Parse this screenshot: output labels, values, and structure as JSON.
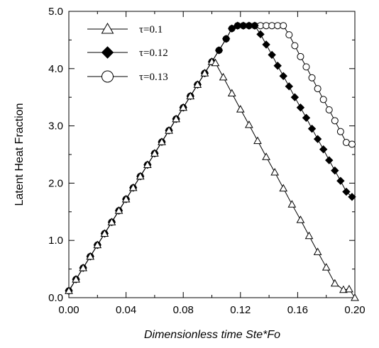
{
  "chart_data": {
    "type": "line",
    "xlabel": "Dimensionless time Ste*Fo",
    "ylabel": "Latent Heat Fraction",
    "xlim": [
      0.0,
      0.2
    ],
    "ylim": [
      0.0,
      5.0
    ],
    "x_ticks": [
      "0.00",
      "0.04",
      "0.08",
      "0.12",
      "0.16",
      "0.20"
    ],
    "x_tick_values": [
      0.0,
      0.04,
      0.08,
      0.12,
      0.16,
      0.2
    ],
    "y_ticks": [
      "0.0",
      "1.0",
      "2.0",
      "3.0",
      "4.0",
      "5.0"
    ],
    "y_tick_values": [
      0.0,
      1.0,
      2.0,
      3.0,
      4.0,
      5.0
    ],
    "grid": false,
    "legend_position": "top-left",
    "series": [
      {
        "name": "τ=0.1",
        "marker": "open-triangle",
        "peak": {
          "x": 0.1025,
          "y": 4.1
        },
        "x": [
          0.0,
          0.005,
          0.01,
          0.015,
          0.02,
          0.025,
          0.03,
          0.035,
          0.04,
          0.045,
          0.05,
          0.055,
          0.06,
          0.065,
          0.07,
          0.075,
          0.08,
          0.085,
          0.09,
          0.095,
          0.1,
          0.1025,
          0.108,
          0.114,
          0.12,
          0.126,
          0.132,
          0.138,
          0.144,
          0.15,
          0.156,
          0.162,
          0.168,
          0.174,
          0.18,
          0.186,
          0.192,
          0.196,
          0.2
        ],
        "values": [
          0.12,
          0.32,
          0.52,
          0.72,
          0.92,
          1.12,
          1.32,
          1.52,
          1.72,
          1.92,
          2.12,
          2.32,
          2.52,
          2.72,
          2.92,
          3.12,
          3.32,
          3.52,
          3.72,
          3.92,
          4.12,
          4.1,
          3.85,
          3.57,
          3.29,
          3.02,
          2.74,
          2.46,
          2.19,
          1.91,
          1.63,
          1.36,
          1.08,
          0.8,
          0.53,
          0.25,
          0.14,
          0.15,
          0.0
        ]
      },
      {
        "name": "τ=0.12",
        "marker": "filled-diamond",
        "x": [
          0.0,
          0.005,
          0.01,
          0.015,
          0.02,
          0.025,
          0.03,
          0.035,
          0.04,
          0.045,
          0.05,
          0.055,
          0.06,
          0.065,
          0.07,
          0.075,
          0.08,
          0.085,
          0.09,
          0.095,
          0.1,
          0.105,
          0.11,
          0.114,
          0.118,
          0.122,
          0.126,
          0.13,
          0.134,
          0.138,
          0.142,
          0.146,
          0.15,
          0.154,
          0.158,
          0.162,
          0.166,
          0.17,
          0.174,
          0.178,
          0.182,
          0.186,
          0.19,
          0.194,
          0.198
        ],
        "values": [
          0.12,
          0.32,
          0.52,
          0.72,
          0.92,
          1.12,
          1.32,
          1.52,
          1.72,
          1.92,
          2.12,
          2.32,
          2.52,
          2.72,
          2.92,
          3.12,
          3.32,
          3.52,
          3.72,
          3.92,
          4.12,
          4.32,
          4.52,
          4.7,
          4.75,
          4.75,
          4.75,
          4.75,
          4.6,
          4.42,
          4.24,
          4.05,
          3.87,
          3.69,
          3.5,
          3.32,
          3.14,
          2.95,
          2.77,
          2.59,
          2.4,
          2.22,
          2.04,
          1.85,
          1.76
        ]
      },
      {
        "name": "τ=0.13",
        "marker": "open-circle",
        "x": [
          0.0,
          0.005,
          0.01,
          0.015,
          0.02,
          0.025,
          0.03,
          0.035,
          0.04,
          0.045,
          0.05,
          0.055,
          0.06,
          0.065,
          0.07,
          0.075,
          0.08,
          0.085,
          0.09,
          0.095,
          0.1,
          0.105,
          0.11,
          0.114,
          0.118,
          0.122,
          0.126,
          0.13,
          0.134,
          0.138,
          0.142,
          0.146,
          0.15,
          0.154,
          0.158,
          0.162,
          0.166,
          0.17,
          0.174,
          0.178,
          0.182,
          0.186,
          0.19,
          0.194,
          0.198
        ],
        "values": [
          0.12,
          0.32,
          0.52,
          0.72,
          0.92,
          1.12,
          1.32,
          1.52,
          1.72,
          1.92,
          2.12,
          2.32,
          2.52,
          2.72,
          2.92,
          3.12,
          3.32,
          3.52,
          3.72,
          3.92,
          4.12,
          4.32,
          4.52,
          4.7,
          4.75,
          4.75,
          4.75,
          4.75,
          4.75,
          4.75,
          4.75,
          4.75,
          4.75,
          4.59,
          4.4,
          4.21,
          4.03,
          3.84,
          3.65,
          3.46,
          3.28,
          3.09,
          2.9,
          2.71,
          2.68
        ]
      }
    ]
  }
}
